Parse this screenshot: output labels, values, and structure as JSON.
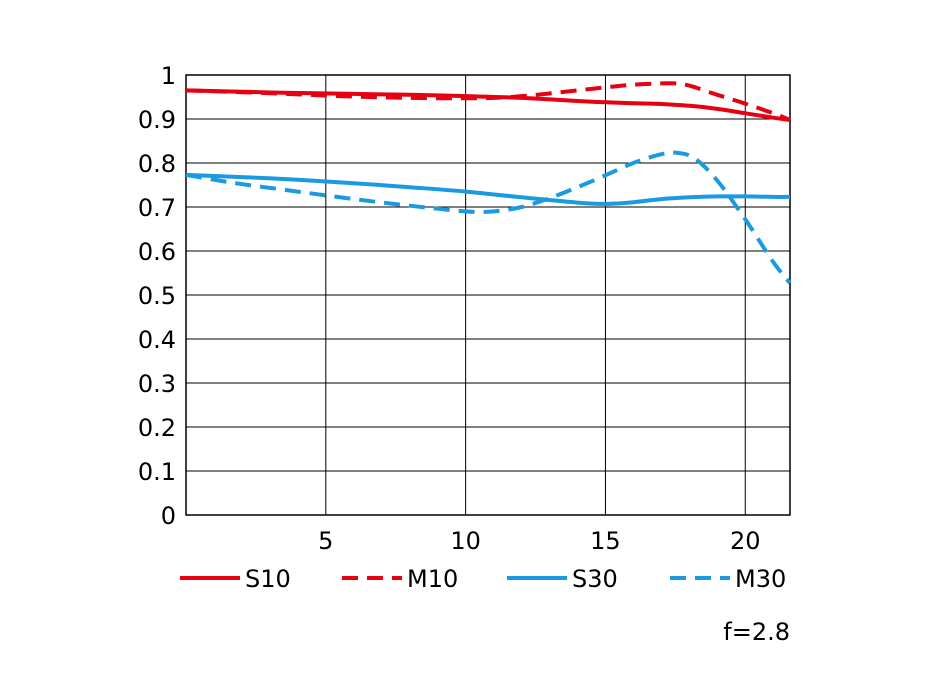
{
  "chart_data": {
    "type": "line",
    "title": "",
    "xlabel": "",
    "ylabel": "",
    "xlim": [
      0,
      21.6
    ],
    "ylim": [
      0,
      1
    ],
    "grid": true,
    "x_ticks": [
      5,
      10,
      15,
      20
    ],
    "x_tick_labels": [
      "5",
      "10",
      "15",
      "20"
    ],
    "y_ticks": [
      0,
      0.1,
      0.2,
      0.3,
      0.4,
      0.5,
      0.6,
      0.7,
      0.8,
      0.9,
      1
    ],
    "y_tick_labels": [
      "0",
      "0.1",
      "0.2",
      "0.3",
      "0.4",
      "0.5",
      "0.6",
      "0.7",
      "0.8",
      "0.9",
      "1"
    ],
    "legend_position": "bottom",
    "series": [
      {
        "name": "S10",
        "color": "#e60012",
        "style": "solid",
        "x": [
          0,
          2,
          4,
          6,
          8,
          10,
          12,
          14,
          15,
          16,
          17,
          18,
          19,
          20,
          21,
          21.6
        ],
        "y": [
          0.965,
          0.962,
          0.959,
          0.957,
          0.955,
          0.952,
          0.948,
          0.941,
          0.938,
          0.936,
          0.934,
          0.93,
          0.923,
          0.913,
          0.903,
          0.898
        ]
      },
      {
        "name": "M10",
        "color": "#e60012",
        "style": "dashed",
        "x": [
          0,
          2,
          4,
          6,
          8,
          10,
          11,
          12,
          13,
          14,
          15,
          16,
          17,
          17.5,
          18,
          19,
          20,
          21,
          21.6
        ],
        "y": [
          0.965,
          0.961,
          0.956,
          0.951,
          0.948,
          0.947,
          0.948,
          0.952,
          0.958,
          0.965,
          0.972,
          0.978,
          0.981,
          0.981,
          0.976,
          0.955,
          0.935,
          0.913,
          0.898
        ]
      },
      {
        "name": "S30",
        "color": "#1a9ae0",
        "style": "solid",
        "x": [
          0,
          2,
          4,
          6,
          8,
          10,
          12,
          14,
          15,
          16,
          17,
          18,
          19,
          20,
          21,
          21.6
        ],
        "y": [
          0.773,
          0.768,
          0.762,
          0.754,
          0.745,
          0.735,
          0.722,
          0.71,
          0.707,
          0.711,
          0.718,
          0.722,
          0.724,
          0.724,
          0.723,
          0.723
        ]
      },
      {
        "name": "M30",
        "color": "#1a9ae0",
        "style": "dashed",
        "x": [
          0,
          1,
          2,
          4,
          6,
          8,
          10,
          11,
          12,
          13,
          14,
          15,
          16,
          17,
          17.6,
          18.2,
          19,
          20,
          21,
          21.6
        ],
        "y": [
          0.773,
          0.762,
          0.752,
          0.735,
          0.718,
          0.703,
          0.69,
          0.69,
          0.7,
          0.72,
          0.745,
          0.772,
          0.8,
          0.82,
          0.823,
          0.81,
          0.76,
          0.672,
          0.575,
          0.527
        ]
      }
    ],
    "annotation": "f=2.8"
  }
}
